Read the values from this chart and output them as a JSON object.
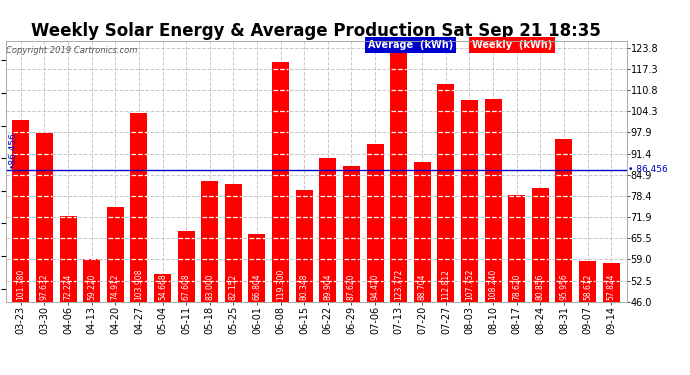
{
  "title": "Weekly Solar Energy & Average Production Sat Sep 21 18:35",
  "copyright": "Copyright 2019 Cartronics.com",
  "categories": [
    "03-23",
    "03-30",
    "04-06",
    "04-13",
    "04-20",
    "04-27",
    "05-04",
    "05-11",
    "05-18",
    "05-25",
    "06-01",
    "06-08",
    "06-15",
    "06-22",
    "06-29",
    "07-06",
    "07-13",
    "07-20",
    "07-27",
    "08-03",
    "08-10",
    "08-17",
    "08-24",
    "08-31",
    "09-07",
    "09-14"
  ],
  "values": [
    101.78,
    97.632,
    72.224,
    59.22,
    74.912,
    103.908,
    54.668,
    67.608,
    83.0,
    82.152,
    66.804,
    119.3,
    80.348,
    89.904,
    87.62,
    94.42,
    123.772,
    88.704,
    112.812,
    107.752,
    108.24,
    78.62,
    80.856,
    95.956,
    58.612,
    57.824
  ],
  "average": 86.456,
  "bar_color": "#ff0000",
  "average_line_color": "#0000cc",
  "background_color": "#ffffff",
  "grid_color": "#c8c8c8",
  "ylim_min": 46.0,
  "ylim_max": 125.8,
  "yticks": [
    46.0,
    52.5,
    59.0,
    65.5,
    71.9,
    78.4,
    84.9,
    91.4,
    97.9,
    104.3,
    110.8,
    117.3,
    123.8
  ],
  "legend_average_bg": "#0000cc",
  "legend_weekly_bg": "#ff0000",
  "legend_text_color": "#ffffff",
  "title_fontsize": 12,
  "copyright_fontsize": 6,
  "tick_fontsize": 7,
  "bar_label_fontsize": 5.5,
  "avg_label": "86.456",
  "avg_label_fontsize": 6.5,
  "bar_width": 0.72
}
